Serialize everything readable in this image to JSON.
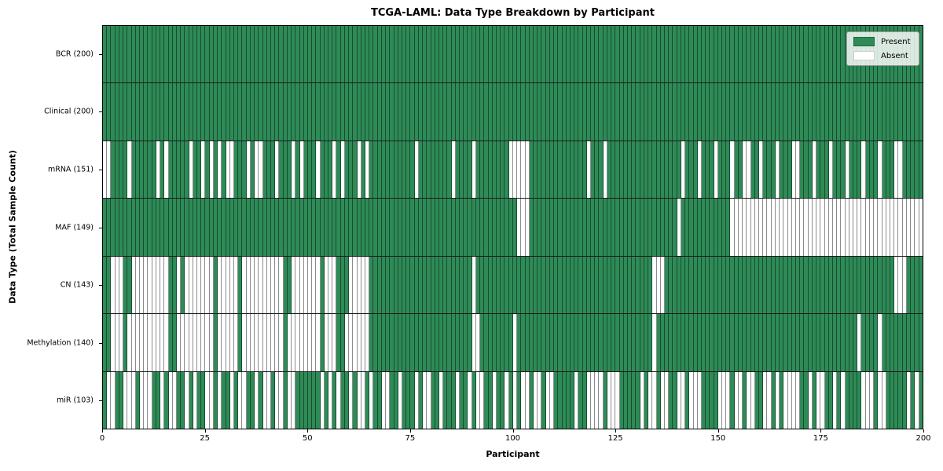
{
  "title": "TCGA-LAML: Data Type Breakdown by Participant",
  "x_axis": {
    "label": "Participant",
    "ticks": [
      0,
      25,
      50,
      75,
      100,
      125,
      150,
      175,
      200
    ],
    "range": [
      0,
      200
    ]
  },
  "y_axis": {
    "label": "Data Type (Total Sample Count)"
  },
  "legend": {
    "present_label": "Present",
    "absent_label": "Absent",
    "position": "upper right"
  },
  "colors": {
    "present": "#2e8b57",
    "absent": "#ffffff",
    "cell_edge": "rgba(0,0,0,0.45)",
    "row_divider": "#1a1a1a"
  },
  "chart_data": {
    "type": "heatmap",
    "title": "TCGA-LAML: Data Type Breakdown by Participant",
    "xlabel": "Participant",
    "ylabel": "Data Type (Total Sample Count)",
    "x_range": [
      0,
      200
    ],
    "x_ticks": [
      0,
      25,
      50,
      75,
      100,
      125,
      150,
      175,
      200
    ],
    "n_participants": 200,
    "legend_entries": [
      "Present",
      "Absent"
    ],
    "grid": false,
    "encoding": "pattern chunks join to a 200-char string; index = participant; 1 = Present (green), 0 = Absent (white)",
    "rows": [
      {
        "label": "BCR (200)",
        "present_count": 200,
        "pattern": [
          "1111111111",
          "1111111111",
          "1111111111",
          "1111111111",
          "1111111111",
          "1111111111",
          "1111111111",
          "1111111111",
          "1111111111",
          "1111111111",
          "1111111111",
          "1111111111",
          "1111111111",
          "1111111111",
          "1111111111",
          "1111111111",
          "1111111111",
          "1111111111",
          "1111111111",
          "1111111111"
        ]
      },
      {
        "label": "Clinical (200)",
        "present_count": 200,
        "pattern": [
          "1111111111",
          "1111111111",
          "1111111111",
          "1111111111",
          "1111111111",
          "1111111111",
          "1111111111",
          "1111111111",
          "1111111111",
          "1111111111",
          "1111111111",
          "1111111111",
          "1111111111",
          "1111111111",
          "1111111111",
          "1111111111",
          "1111111111",
          "1111111111",
          "1111111111",
          "1111111111"
        ]
      },
      {
        "label": "mRNA (151)",
        "present_count": 151,
        "pattern": [
          "0011110111",
          "1110101111",
          "1011010101",
          "0011101001",
          "1101110101",
          "1101110101",
          "1101011111",
          "1111110111",
          "1111101111",
          "0111111110",
          "0000111111",
          "1111111101",
          "1101111111",
          "1111111111",
          "1011101110",
          "1110110011",
          "0111011100",
          "1110111011",
          "1011101110",
          "1110011111"
        ]
      },
      {
        "label": "MAF (149)",
        "present_count": 149,
        "pattern": [
          "1111111111",
          "1111111111",
          "1111111111",
          "1111111111",
          "1111111111",
          "1111111111",
          "1111111111",
          "1111111111",
          "1111111111",
          "1111111111",
          "1000111111",
          "1111111111",
          "1111111111",
          "1111111111",
          "0111111111",
          "1110000000",
          "0000000000",
          "0000000000",
          "0000000000",
          "0000000000"
        ]
      },
      {
        "label": "CN (143)",
        "present_count": 143,
        "pattern": [
          "1100011000",
          "0000001101",
          "0000000100",
          "0001000000",
          "0000110000",
          "0001000111",
          "0000011111",
          "1111111111",
          "1111111111",
          "0111111111",
          "1111111111",
          "1111111111",
          "1111111111",
          "1111000111",
          "1111111111",
          "1111111111",
          "1111111111",
          "1111111111",
          "1111111111",
          "1110001111"
        ]
      },
      {
        "label": "Methylation (140)",
        "present_count": 140,
        "pattern": [
          "1100010000",
          "0000001100",
          "0000000100",
          "0001000000",
          "0000100000",
          "0001000110",
          "0000011111",
          "1111111111",
          "1111111111",
          "0011111111",
          "0111111111",
          "1111111111",
          "1111111111",
          "1111011111",
          "1111111111",
          "1111111111",
          "1111111111",
          "1111111111",
          "1111011110",
          "1111111111"
        ]
      },
      {
        "label": "miR (103)",
        "present_count": 103,
        "pattern": [
          "1001100010",
          "0011010011",
          "0101100101",
          "1010011010",
          "0100100111",
          "1110101011",
          "0100101100",
          "1101110100",
          "1101110110",
          "1001101101",
          "0100100100",
          "1111101100",
          "0010001111",
          "1010010011",
          "0010001111",
          "0001001001",
          "1001010000",
          "1101001101",
          "0111100010",
          "0111110101"
        ]
      }
    ]
  }
}
